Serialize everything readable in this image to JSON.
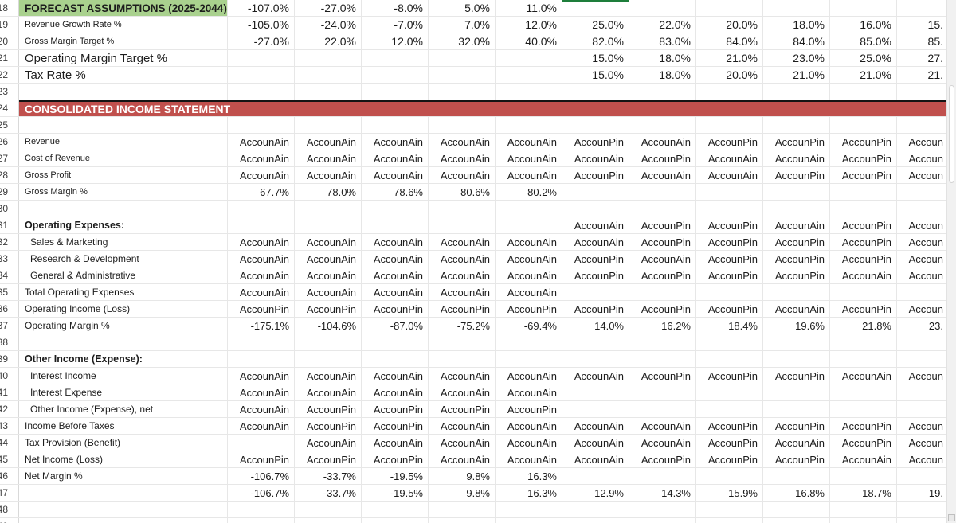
{
  "colors": {
    "header_green": "#a9d18e",
    "band_red": "#c0504d",
    "selection_green": "#1e7e3b",
    "grid_line": "#e7e7e7",
    "text_dark": "#1c1c1c"
  },
  "sheet": {
    "selected_cell": {
      "row": "18",
      "column": "G",
      "row_index": 0,
      "value_index": 5
    },
    "rows": [
      {
        "num": "18",
        "label": "FORECAST ASSUMPTIONS (2025-2044)",
        "label_style": "greenhdr",
        "values": [
          "-107.0%",
          "-27.0%",
          "-8.0%",
          "5.0%",
          "11.0%",
          "",
          "",
          "",
          "",
          "",
          ""
        ]
      },
      {
        "num": "19",
        "label": "Revenue Growth Rate %",
        "label_style": "small",
        "values": [
          "-105.0%",
          "-24.0%",
          "-7.0%",
          "7.0%",
          "12.0%",
          "25.0%",
          "22.0%",
          "20.0%",
          "18.0%",
          "16.0%",
          "15."
        ]
      },
      {
        "num": "20",
        "label": "Gross Margin Target %",
        "label_style": "small",
        "values": [
          "-27.0%",
          "22.0%",
          "12.0%",
          "32.0%",
          "40.0%",
          "82.0%",
          "83.0%",
          "84.0%",
          "84.0%",
          "85.0%",
          "85."
        ]
      },
      {
        "num": "21",
        "label": "Operating Margin Target %",
        "label_style": "large",
        "values": [
          "",
          "",
          "",
          "",
          "",
          "15.0%",
          "18.0%",
          "21.0%",
          "23.0%",
          "25.0%",
          "27."
        ]
      },
      {
        "num": "22",
        "label": "Tax Rate %",
        "label_style": "large",
        "values": [
          "",
          "",
          "",
          "",
          "",
          "15.0%",
          "18.0%",
          "20.0%",
          "21.0%",
          "21.0%",
          "21."
        ]
      },
      {
        "num": "23",
        "label": "",
        "label_style": "",
        "values": [
          "",
          "",
          "",
          "",
          "",
          "",
          "",
          "",
          "",
          "",
          ""
        ]
      },
      {
        "num": "24",
        "label": "CONSOLIDATED INCOME STATEMENT",
        "style": "red",
        "values": []
      },
      {
        "num": "25",
        "label": "",
        "label_style": "",
        "values": [
          "",
          "",
          "",
          "",
          "",
          "",
          "",
          "",
          "",
          "",
          ""
        ]
      },
      {
        "num": "26",
        "label": "Revenue",
        "label_style": "small",
        "values": [
          "AccounAin",
          "AccounAin",
          "AccounAin",
          "AccounAin",
          "AccounAin",
          "AccounPin",
          "AccounAin",
          "AccounPin",
          "AccounPin",
          "AccounPin",
          "Accoun"
        ]
      },
      {
        "num": "27",
        "label": "Cost of Revenue",
        "label_style": "small",
        "values": [
          "AccounAin",
          "AccounAin",
          "AccounAin",
          "AccounAin",
          "AccounAin",
          "AccounAin",
          "AccounPin",
          "AccounAin",
          "AccounAin",
          "AccounPin",
          "Accoun"
        ]
      },
      {
        "num": "28",
        "label": "Gross Profit",
        "label_style": "small",
        "values": [
          "AccounAin",
          "AccounAin",
          "AccounAin",
          "AccounAin",
          "AccounAin",
          "AccounPin",
          "AccounAin",
          "AccounAin",
          "AccounPin",
          "AccounPin",
          "Accoun"
        ]
      },
      {
        "num": "29",
        "label": "Gross Margin %",
        "label_style": "small",
        "values": [
          "67.7%",
          "78.0%",
          "78.6%",
          "80.6%",
          "80.2%",
          "",
          "",
          "",
          "",
          "",
          ""
        ]
      },
      {
        "num": "30",
        "label": "",
        "label_style": "",
        "values": [
          "",
          "",
          "",
          "",
          "",
          "",
          "",
          "",
          "",
          "",
          ""
        ]
      },
      {
        "num": "31",
        "label": "Operating Expenses:",
        "label_style": "boldlbl",
        "values": [
          "",
          "",
          "",
          "",
          "",
          "AccounAin",
          "AccounPin",
          "AccounPin",
          "AccounAin",
          "AccounPin",
          "Accoun"
        ]
      },
      {
        "num": "32",
        "label": "Sales & Marketing",
        "label_style": "indent",
        "values": [
          "AccounAin",
          "AccounAin",
          "AccounAin",
          "AccounAin",
          "AccounAin",
          "AccounAin",
          "AccounPin",
          "AccounPin",
          "AccounPin",
          "AccounPin",
          "Accoun"
        ]
      },
      {
        "num": "33",
        "label": "Research & Development",
        "label_style": "indent",
        "values": [
          "AccounAin",
          "AccounAin",
          "AccounAin",
          "AccounAin",
          "AccounAin",
          "AccounPin",
          "AccounAin",
          "AccounPin",
          "AccounPin",
          "AccounPin",
          "Accoun"
        ]
      },
      {
        "num": "34",
        "label": "General & Administrative",
        "label_style": "indent",
        "values": [
          "AccounAin",
          "AccounAin",
          "AccounAin",
          "AccounAin",
          "AccounAin",
          "AccounPin",
          "AccounPin",
          "AccounPin",
          "AccounPin",
          "AccounAin",
          "Accoun"
        ]
      },
      {
        "num": "35",
        "label": "Total Operating Expenses",
        "label_style": "",
        "values": [
          "AccounAin",
          "AccounAin",
          "AccounAin",
          "AccounAin",
          "AccounAin",
          "",
          "",
          "",
          "",
          "",
          ""
        ]
      },
      {
        "num": "36",
        "label": "Operating Income (Loss)",
        "label_style": "",
        "values": [
          "AccounPin",
          "AccounPin",
          "AccounPin",
          "AccounPin",
          "AccounPin",
          "AccounPin",
          "AccounPin",
          "AccounPin",
          "AccounAin",
          "AccounPin",
          "Accoun"
        ]
      },
      {
        "num": "37",
        "label": "Operating Margin %",
        "label_style": "",
        "values": [
          "-175.1%",
          "-104.6%",
          "-87.0%",
          "-75.2%",
          "-69.4%",
          "14.0%",
          "16.2%",
          "18.4%",
          "19.6%",
          "21.8%",
          "23."
        ]
      },
      {
        "num": "38",
        "label": "",
        "label_style": "",
        "values": [
          "",
          "",
          "",
          "",
          "",
          "",
          "",
          "",
          "",
          "",
          ""
        ]
      },
      {
        "num": "39",
        "label": "Other Income (Expense):",
        "label_style": "boldlbl",
        "values": [
          "",
          "",
          "",
          "",
          "",
          "",
          "",
          "",
          "",
          "",
          ""
        ]
      },
      {
        "num": "40",
        "label": "Interest Income",
        "label_style": "indent",
        "values": [
          "AccounAin",
          "AccounAin",
          "AccounAin",
          "AccounAin",
          "AccounAin",
          "AccounAin",
          "AccounPin",
          "AccounPin",
          "AccounPin",
          "AccounAin",
          "Accoun"
        ]
      },
      {
        "num": "41",
        "label": "Interest Expense",
        "label_style": "indent",
        "values": [
          "AccounAin",
          "AccounAin",
          "AccounAin",
          "AccounAin",
          "AccounAin",
          "",
          "",
          "",
          "",
          "",
          ""
        ]
      },
      {
        "num": "42",
        "label": "Other Income (Expense), net",
        "label_style": "indent",
        "values": [
          "AccounAin",
          "AccounPin",
          "AccounPin",
          "AccounPin",
          "AccounPin",
          "",
          "",
          "",
          "",
          "",
          ""
        ]
      },
      {
        "num": "43",
        "label": "Income Before Taxes",
        "label_style": "",
        "values": [
          "AccounAin",
          "AccounPin",
          "AccounPin",
          "AccounAin",
          "AccounAin",
          "AccounAin",
          "AccounAin",
          "AccounPin",
          "AccounPin",
          "AccounPin",
          "Accoun"
        ]
      },
      {
        "num": "44",
        "label": "Tax Provision (Benefit)",
        "label_style": "",
        "values": [
          "",
          "AccounAin",
          "AccounAin",
          "AccounAin",
          "AccounAin",
          "AccounAin",
          "AccounAin",
          "AccounPin",
          "AccounAin",
          "AccounPin",
          "Accoun"
        ]
      },
      {
        "num": "45",
        "label": "Net Income (Loss)",
        "label_style": "",
        "values": [
          "AccounPin",
          "AccounPin",
          "AccounPin",
          "AccounAin",
          "AccounAin",
          "AccounAin",
          "AccounPin",
          "AccounPin",
          "AccounPin",
          "AccounAin",
          "Accoun"
        ]
      },
      {
        "num": "46",
        "label": "Net Margin %",
        "label_style": "",
        "values": [
          "-106.7%",
          "-33.7%",
          "-19.5%",
          "9.8%",
          "16.3%",
          "",
          "",
          "",
          "",
          "",
          ""
        ]
      },
      {
        "num": "47",
        "label": "",
        "label_style": "",
        "values": [
          "-106.7%",
          "-33.7%",
          "-19.5%",
          "9.8%",
          "16.3%",
          "12.9%",
          "14.3%",
          "15.9%",
          "16.8%",
          "18.7%",
          "19."
        ]
      },
      {
        "num": "48",
        "label": "",
        "label_style": "",
        "values": [
          "",
          "",
          "",
          "",
          "",
          "",
          "",
          "",
          "",
          "",
          ""
        ]
      },
      {
        "num": "49",
        "label": "",
        "label_style": "",
        "values": [
          "",
          "",
          "",
          "",
          "",
          "",
          "",
          "",
          "",
          "",
          ""
        ]
      }
    ]
  }
}
